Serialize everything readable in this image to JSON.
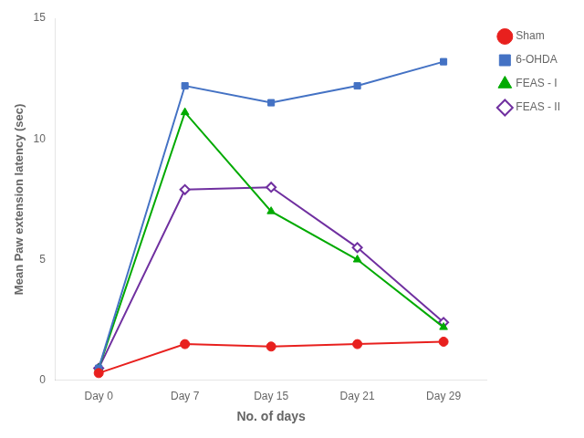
{
  "chart_data": {
    "type": "line",
    "categories": [
      "Day 0",
      "Day 7",
      "Day 15",
      "Day 21",
      "Day 29"
    ],
    "series": [
      {
        "name": "Sham",
        "color": "#e8201e",
        "marker": "circle",
        "values": [
          0.3,
          1.5,
          1.4,
          1.5,
          1.6
        ]
      },
      {
        "name": "6-OHDA",
        "color": "#4472c4",
        "marker": "square",
        "values": [
          0.5,
          12.2,
          11.5,
          12.2,
          13.2
        ]
      },
      {
        "name": "FEAS - I",
        "color": "#00aa00",
        "marker": "triangle",
        "values": [
          0.5,
          11.1,
          7.0,
          5.0,
          2.2
        ]
      },
      {
        "name": "FEAS - II",
        "color": "#7030a0",
        "marker": "diamond",
        "values": [
          0.5,
          7.9,
          8.0,
          5.5,
          2.4
        ]
      }
    ],
    "xlabel": "No. of days",
    "ylabel": "Mean Paw extension latency (sec)",
    "ylim": [
      0,
      15
    ],
    "yticks": [
      0,
      5,
      10,
      15
    ],
    "grid": false,
    "legend": "right"
  }
}
